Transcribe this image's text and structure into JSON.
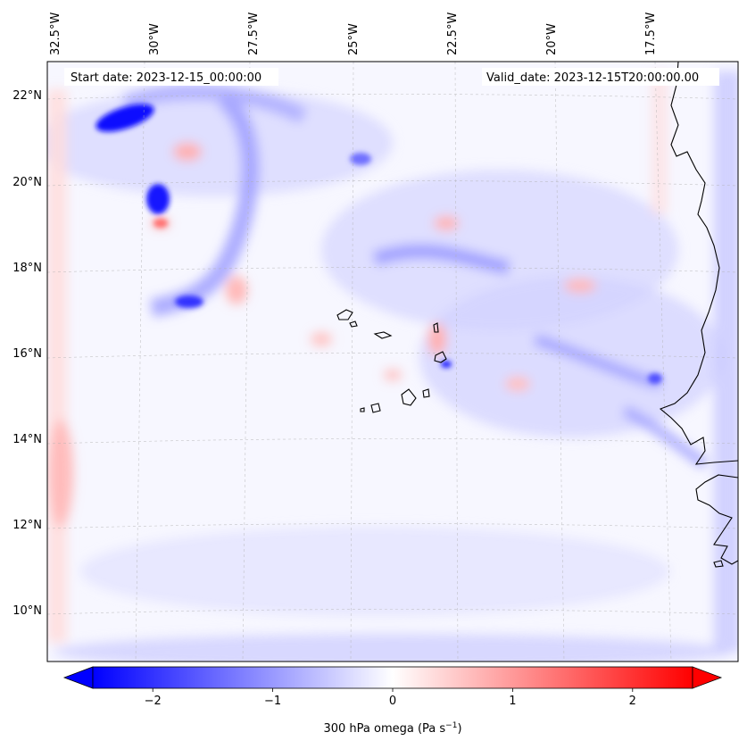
{
  "map": {
    "start_date_text": "Start date: 2023-12-15_00:00:00",
    "valid_date_text": "Valid_date: 2023-12-15T20:00:00.00",
    "lon_ticks": [
      "32.5°W",
      "30°W",
      "27.5°W",
      "25°W",
      "22.5°W",
      "20°W",
      "17.5°W"
    ],
    "lat_ticks": [
      "22°N",
      "20°N",
      "18°N",
      "16°N",
      "14°N",
      "12°N",
      "10°N"
    ],
    "colors": {
      "negative": "#0000ff",
      "zero": "#ffffff",
      "positive": "#ff0000",
      "coastline": "#000000"
    }
  },
  "colorbar": {
    "ticks": [
      "−2",
      "−1",
      "0",
      "1",
      "2"
    ],
    "tick_values": [
      -2,
      -1,
      0,
      1,
      2
    ],
    "range": [
      -2.5,
      2.5
    ],
    "label_main": "300 hPa omega (Pa s",
    "label_sup": "−1",
    "label_end": ")"
  }
}
